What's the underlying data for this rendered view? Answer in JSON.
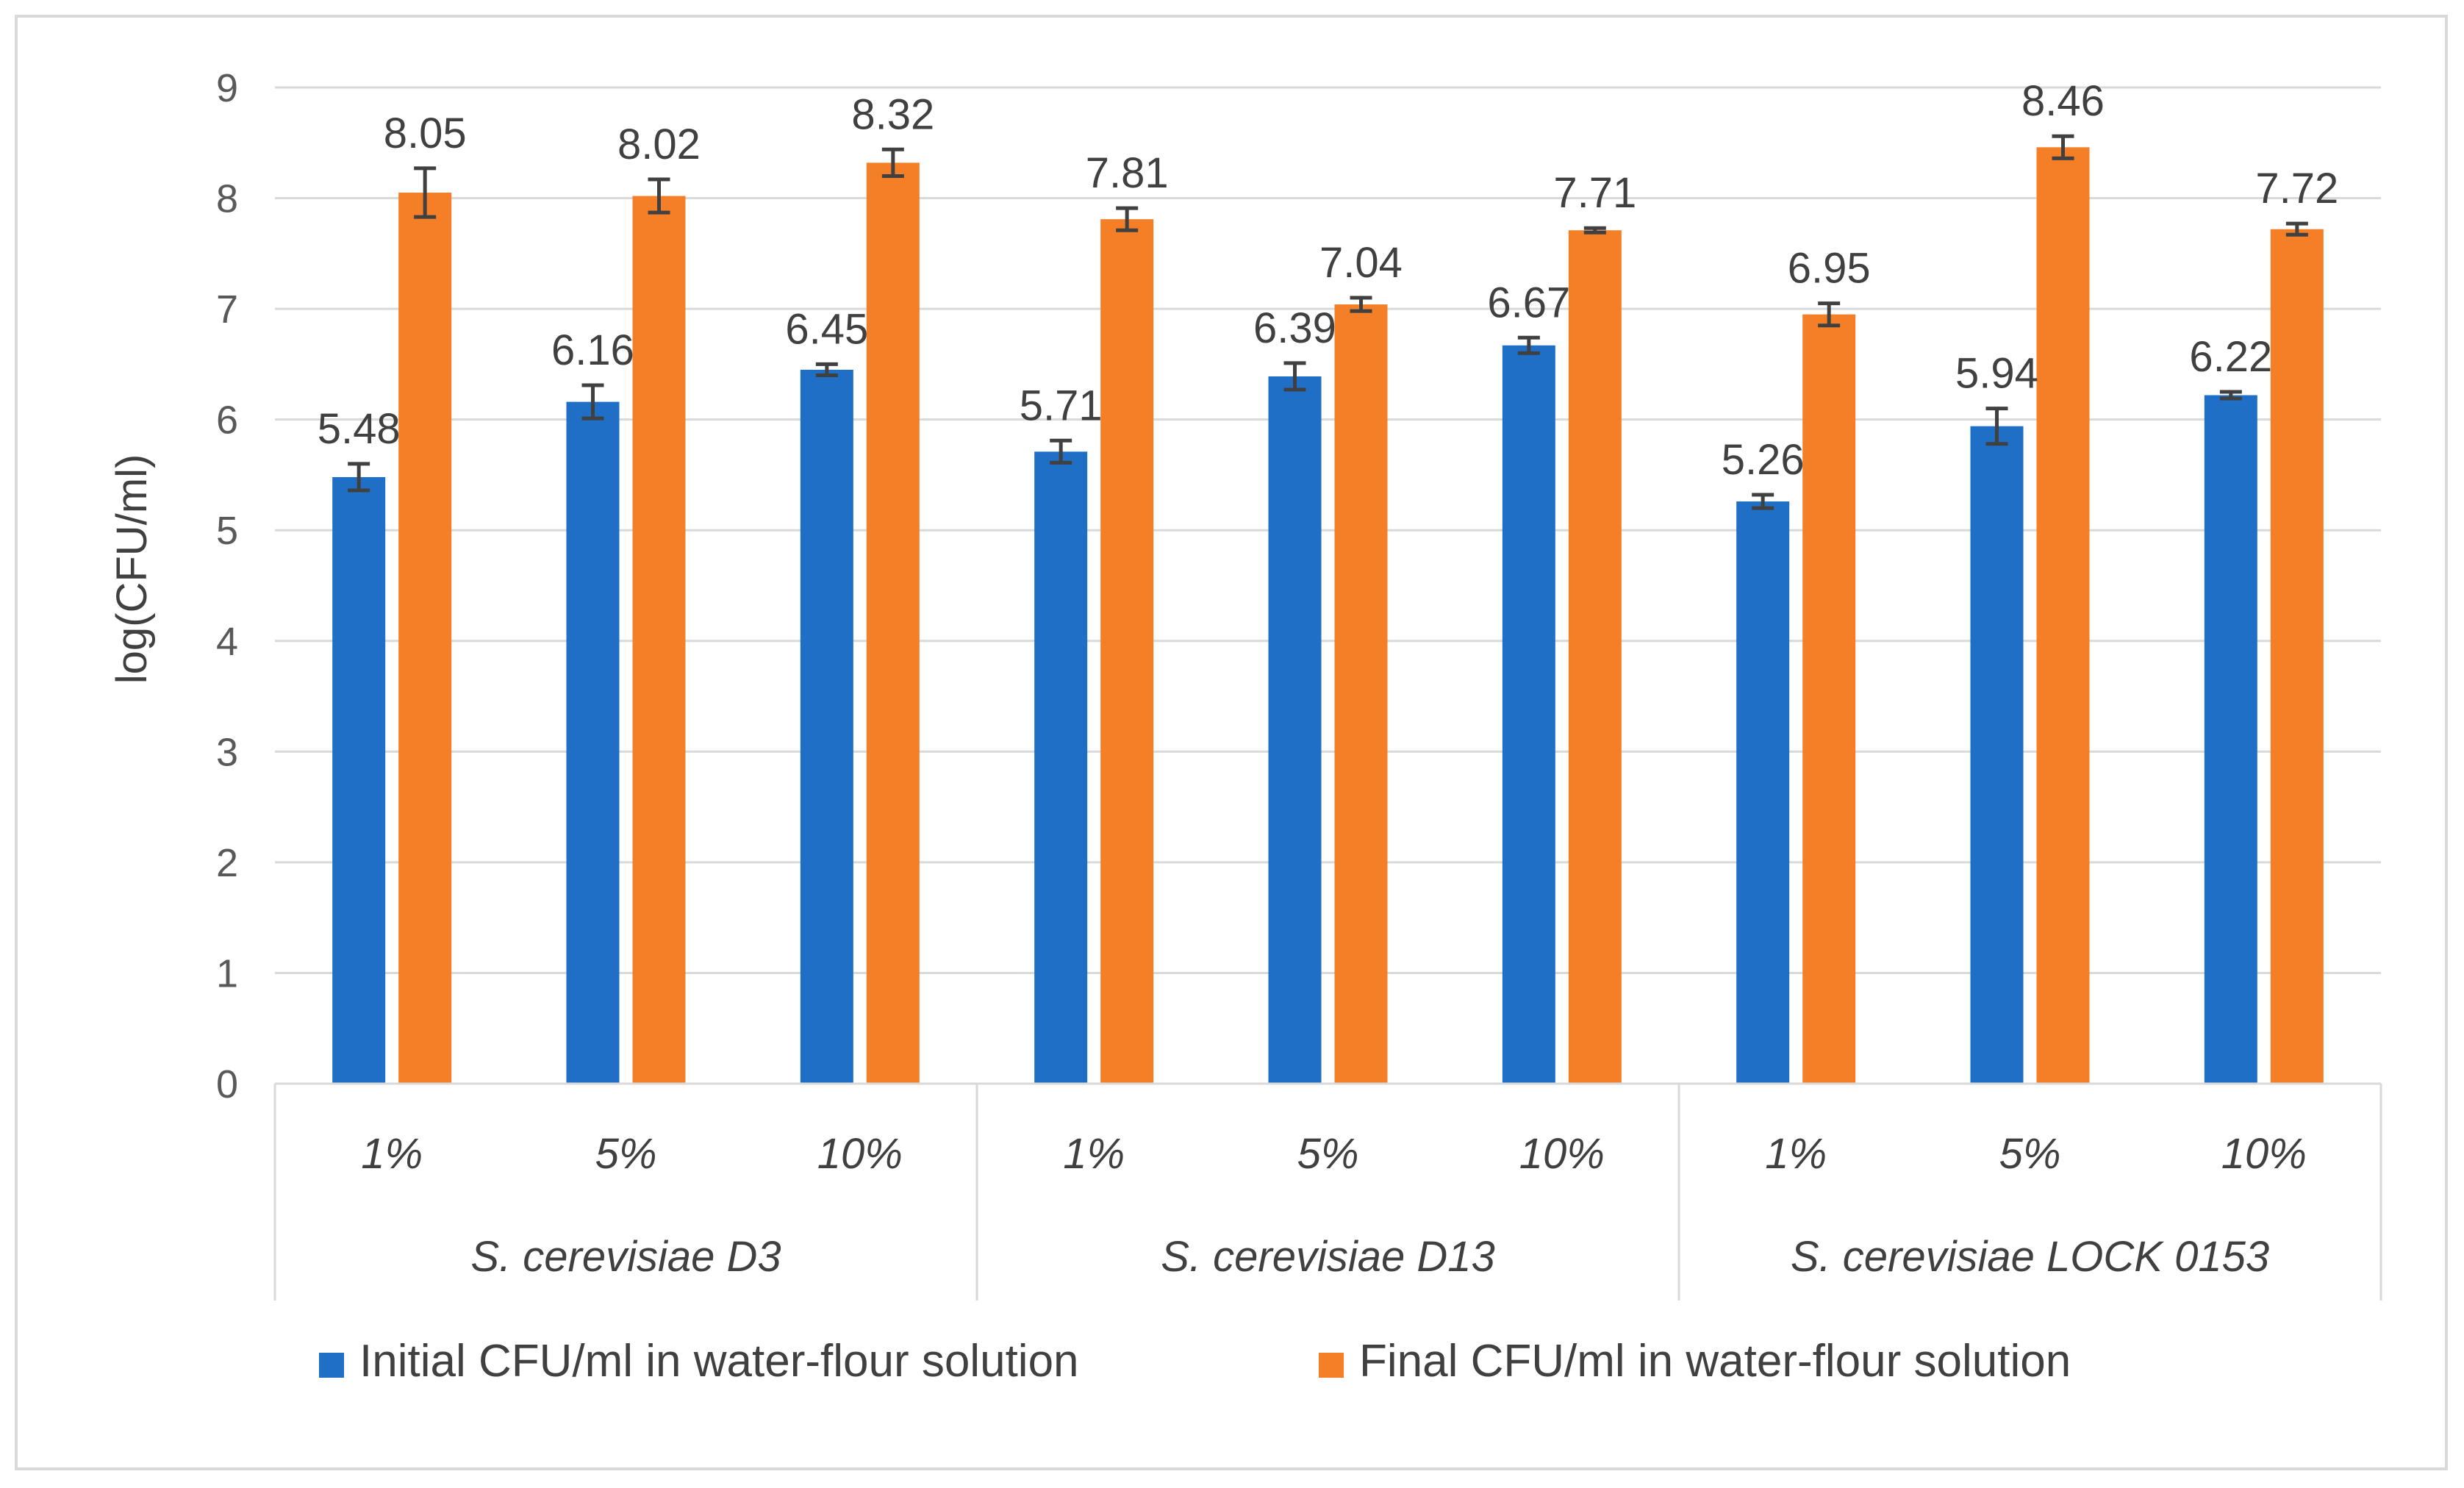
{
  "chart_data": {
    "type": "bar",
    "title": "",
    "xlabel": "",
    "ylabel": "log(CFU/ml)",
    "ylim": [
      0,
      9
    ],
    "yticks": [
      0,
      1,
      2,
      3,
      4,
      5,
      6,
      7,
      8,
      9
    ],
    "grid": true,
    "legend_position": "bottom",
    "groups": [
      {
        "name": "S. cerevisiae D3",
        "categories": [
          "1%",
          "5%",
          "10%"
        ]
      },
      {
        "name": "S. cerevisiae D13",
        "categories": [
          "1%",
          "5%",
          "10%"
        ]
      },
      {
        "name": "S. cerevisiae LOCK 0153",
        "categories": [
          "1%",
          "5%",
          "10%"
        ]
      }
    ],
    "series": [
      {
        "name": "Initial CFU/ml in water-flour solution",
        "color": "#1f6fc7",
        "values": [
          5.48,
          6.16,
          6.45,
          5.71,
          6.39,
          6.67,
          5.26,
          5.94,
          6.22
        ],
        "labels": [
          "5.48",
          "6.16",
          "6.45",
          "5.71",
          "6.39",
          "6.67",
          "5.26",
          "5.94",
          "6.22"
        ],
        "errors": [
          0.12,
          0.15,
          0.05,
          0.1,
          0.12,
          0.07,
          0.06,
          0.16,
          0.03
        ]
      },
      {
        "name": "Final CFU/ml in water-flour solution",
        "color": "#f47f26",
        "values": [
          8.05,
          8.02,
          8.32,
          7.81,
          7.04,
          7.71,
          6.95,
          8.46,
          7.72
        ],
        "labels": [
          "8.05",
          "8.02",
          "8.32",
          "7.81",
          "7.04",
          "7.71",
          "6.95",
          "8.46",
          "7.72"
        ],
        "errors": [
          0.22,
          0.15,
          0.12,
          0.1,
          0.06,
          0.02,
          0.1,
          0.1,
          0.05
        ]
      }
    ]
  }
}
